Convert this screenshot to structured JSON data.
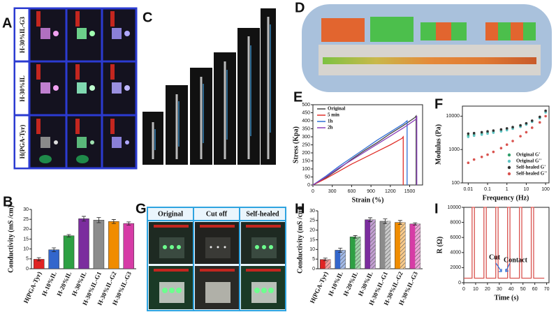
{
  "photos": {
    "A": {
      "letter": "A",
      "row_labels": [
        "H-30%IL-G3",
        "H-30%IL",
        "H(PGA-Tyr)"
      ]
    },
    "C": {
      "letter": "C"
    },
    "D": {
      "letter": "D"
    },
    "G": {
      "letter": "G",
      "column_labels": [
        "Original",
        "Cut off",
        "Self-healed"
      ]
    }
  },
  "chart_data": [
    {
      "type": "bar",
      "panel": "B",
      "ylabel": "Conductivity (mS /cm)",
      "categories": [
        "H(PGA-Tyr)",
        "H-10%IL",
        "H-20%IL",
        "H-30%IL",
        "H-30%IL-G1",
        "H-30%IL-G2",
        "H-30%IL-G3"
      ],
      "values": [
        4.8,
        9.6,
        16.7,
        25.3,
        24.6,
        23.9,
        22.9
      ],
      "errors": [
        0.8,
        1.0,
        0.6,
        1.2,
        1.3,
        1.0,
        0.8
      ],
      "colors": [
        "#e02424",
        "#3366cc",
        "#2ea043",
        "#7b2d9e",
        "#8c8c8c",
        "#f08c00",
        "#d63ca6"
      ],
      "ylim": [
        0,
        30
      ],
      "yticks": [
        0,
        5,
        10,
        15,
        20,
        25,
        30
      ]
    },
    {
      "type": "line",
      "panel": "E",
      "xlabel": "Strain (%)",
      "ylabel": "Stress (Kpa)",
      "legend": "upper left",
      "frame": true,
      "series": [
        {
          "name": "Original",
          "color": "#444444",
          "x": [
            0,
            200,
            400,
            600,
            800,
            1000,
            1200,
            1400,
            1580,
            1600,
            1600
          ],
          "values": [
            0,
            45,
            100,
            160,
            215,
            265,
            320,
            370,
            420,
            430,
            0
          ]
        },
        {
          "name": "5 min",
          "color": "#e0302a",
          "x": [
            0,
            200,
            400,
            600,
            800,
            1000,
            1200,
            1380,
            1400,
            1400
          ],
          "values": [
            0,
            40,
            85,
            130,
            170,
            210,
            250,
            290,
            300,
            0
          ]
        },
        {
          "name": "1h",
          "color": "#2f6fd6",
          "x": [
            0,
            200,
            400,
            600,
            800,
            1000,
            1200,
            1400,
            1460,
            1460
          ],
          "values": [
            0,
            55,
            115,
            170,
            225,
            280,
            330,
            380,
            400,
            0
          ]
        },
        {
          "name": "2h",
          "color": "#8a3fb8",
          "x": [
            0,
            200,
            400,
            600,
            800,
            1000,
            1200,
            1400,
            1600,
            1610,
            1610
          ],
          "values": [
            0,
            50,
            105,
            155,
            205,
            255,
            305,
            355,
            410,
            430,
            0
          ]
        }
      ],
      "xlim": [
        0,
        1700
      ],
      "xticks": [
        0,
        300,
        600,
        900,
        1200,
        1500
      ],
      "ylim": [
        0,
        500
      ],
      "yticks": [
        0,
        50,
        100,
        150,
        200,
        250,
        300,
        350,
        400,
        450,
        500
      ]
    },
    {
      "type": "scatter",
      "panel": "F",
      "xlabel": "Frequency (Hz)",
      "ylabel": "Modulus (Pa)",
      "legend": "lower right",
      "frame": true,
      "xscale": "log",
      "yscale": "log",
      "x": [
        0.01,
        0.02,
        0.05,
        0.1,
        0.2,
        0.5,
        1,
        2,
        5,
        10,
        20,
        50,
        100
      ],
      "series": [
        {
          "name": "Original G'",
          "color": "#2e9e6a",
          "values": [
            2600,
            2800,
            3000,
            3200,
            3400,
            3700,
            4000,
            4400,
            5000,
            5800,
            7000,
            9000,
            14000
          ]
        },
        {
          "name": "Original G''",
          "color": "#5fc4c4",
          "values": [
            2400,
            2600,
            2800,
            3000,
            3200,
            3500,
            3800,
            4200,
            4800,
            5600,
            6800,
            8700,
            13000
          ]
        },
        {
          "name": "Self-healed G'",
          "color": "#333333",
          "values": [
            3000,
            3100,
            3300,
            3500,
            3700,
            4000,
            4300,
            4700,
            5300,
            6100,
            7300,
            9500,
            14500
          ]
        },
        {
          "name": "Self-healed G''",
          "color": "#d9534f",
          "values": [
            400,
            500,
            600,
            700,
            850,
            1100,
            1400,
            1800,
            2500,
            3300,
            4500,
            6500,
            10000
          ]
        }
      ],
      "xlim": [
        0.005,
        150
      ],
      "xticks": [
        0.01,
        0.1,
        1,
        10,
        100
      ],
      "ylim": [
        100,
        20000
      ],
      "yticks": [
        100,
        1000,
        10000
      ]
    },
    {
      "type": "bar",
      "panel": "H",
      "ylabel": "Conductivity (mS /cm)",
      "hatch": true,
      "categories": [
        "H(PGA-Tyr)",
        "H-10%IL",
        "H-20%IL",
        "H-30%IL",
        "H-30%IL-G1",
        "H-30%IL-G2",
        "H-30%IL-G3"
      ],
      "values": [
        4.8,
        9.6,
        16.5,
        25.4,
        24.6,
        24.0,
        23.2
      ],
      "errors": [
        0.7,
        1.1,
        0.7,
        1.0,
        1.2,
        1.0,
        0.6
      ],
      "colors": [
        "#e02424",
        "#3366cc",
        "#2ea043",
        "#7b2d9e",
        "#8c8c8c",
        "#f08c00",
        "#d63ca6"
      ],
      "ylim": [
        0,
        30
      ],
      "yticks": [
        0,
        5,
        10,
        15,
        20,
        25,
        30
      ]
    },
    {
      "type": "line",
      "panel": "I",
      "xlabel": "Time (s)",
      "ylabel": "R (Ω)",
      "frame": true,
      "annotations": [
        "Cut",
        "Contact"
      ],
      "series": [
        {
          "color": "#d9534f",
          "x": [
            0,
            7,
            7,
            9,
            9,
            17,
            17,
            19,
            19,
            27,
            27,
            29,
            29,
            37,
            37,
            39,
            39,
            47,
            47,
            49,
            49,
            57,
            57,
            59,
            59,
            68
          ],
          "values": [
            600,
            600,
            10000,
            10000,
            600,
            600,
            10000,
            10000,
            600,
            600,
            10000,
            10000,
            600,
            600,
            10000,
            10000,
            600,
            600,
            10000,
            10000,
            600,
            600,
            10000,
            10000,
            600,
            600
          ]
        }
      ],
      "xlim": [
        0,
        72
      ],
      "xticks": [
        0,
        10,
        20,
        30,
        40,
        50,
        60,
        70
      ],
      "ylim": [
        0,
        10000
      ],
      "yticks": [
        0,
        2000,
        4000,
        6000,
        8000,
        10000
      ]
    }
  ]
}
